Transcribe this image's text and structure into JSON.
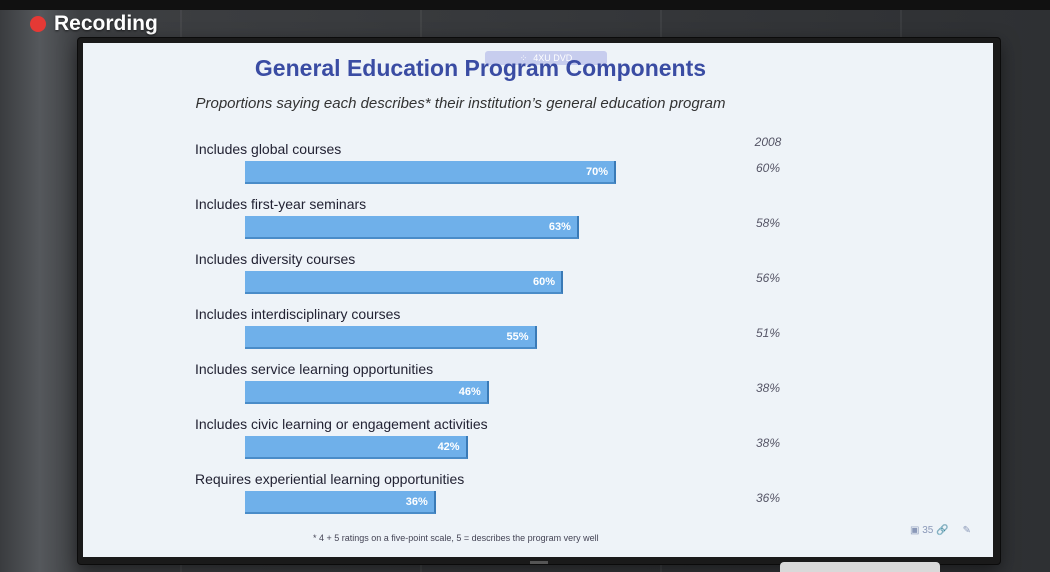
{
  "recording": {
    "label": "Recording",
    "color": "#e53935"
  },
  "slide": {
    "badge": "4XU DVD",
    "title": "General Education Program Components",
    "subtitle": "Proportions saying each describes* their institution’s general education program",
    "year_header": "2008",
    "footnote": "* 4 + 5 ratings on a five-point scale, 5 = describes the program very well",
    "toolbar_count": "35"
  },
  "chart_data": {
    "type": "bar",
    "title": "General Education Program Components",
    "categories": [
      "Includes global courses",
      "Includes first-year seminars",
      "Includes diversity courses",
      "Includes interdisciplinary courses",
      "Includes service learning opportunities",
      "Includes civic learning or engagement activities",
      "Requires experiential learning opportunities"
    ],
    "series": [
      {
        "values": [
          70,
          63,
          60,
          55,
          46,
          42,
          36
        ],
        "labels": [
          "70%",
          "63%",
          "60%",
          "55%",
          "46%",
          "42%",
          "36%"
        ]
      },
      {
        "name": "2008",
        "values": [
          60,
          58,
          56,
          51,
          38,
          38,
          36
        ],
        "labels": [
          "60%",
          "58%",
          "56%",
          "51%",
          "38%",
          "38%",
          "36%"
        ]
      }
    ],
    "bar_color": "#6fb0ea"
  }
}
